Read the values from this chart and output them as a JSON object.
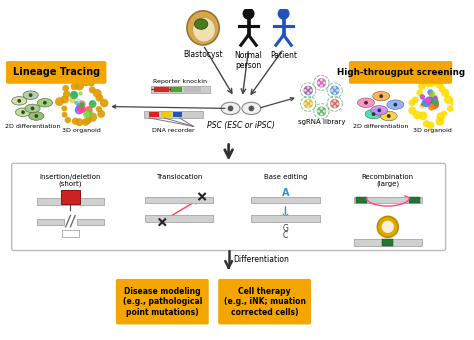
{
  "bg_color": "#ffffff",
  "lineage_tracing_label": "Lineage Tracing",
  "high_throughput_label": "High-througput screening",
  "label_bg": "#f5a500",
  "psc_label": "PSC (ESC or iPSC)",
  "blastocyst_label": "Blastocyst",
  "normal_person_label": "Normal\nperson",
  "patient_label": "Patient",
  "reporter_knockin_label": "Reporter knockin",
  "dna_recorder_label": "DNA recorder",
  "sgrna_library_label": "sgRNA library",
  "diff_2d_label": "2D differentiation",
  "organoid_3d_label": "3D organoid",
  "diff_2d_right_label": "2D differentiation",
  "organoid_3d_right_label": "3D organoid",
  "insertion_deletion_label": "Insertion/deletion\n(short)",
  "translocation_label": "Translocation",
  "base_editing_label": "Base editing",
  "recombination_label": "Recombination\n(large)",
  "differentiation_label": "Differentiation",
  "disease_modeling_label": "Disease modeling\n(e.g., pathological\npoint mutations)",
  "cell_therapy_label": "Cell therapy\n(e.g., iNK; muation\ncorrected cells)"
}
